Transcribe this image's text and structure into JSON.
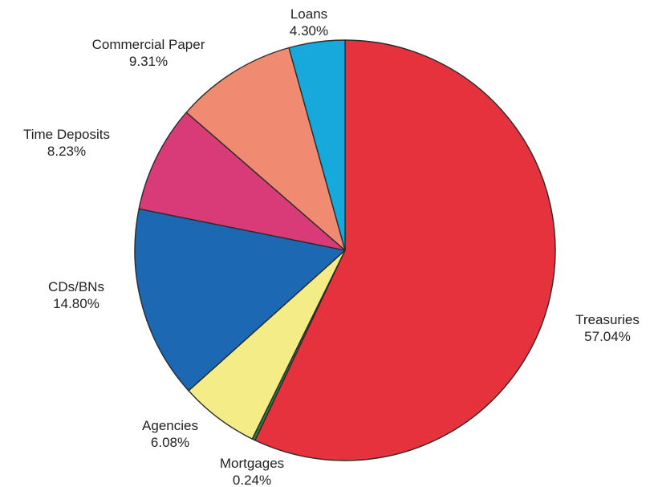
{
  "chart_data": {
    "type": "pie",
    "title": "",
    "start_angle_deg": 0,
    "direction": "clockwise",
    "slices": [
      {
        "label": "Treasuries",
        "value": 57.04,
        "display": "57.04%",
        "color": "#e5323d"
      },
      {
        "label": "Mortgages",
        "value": 0.24,
        "display": "0.24%",
        "color": "#2e7d3a"
      },
      {
        "label": "Agencies",
        "value": 6.08,
        "display": "6.08%",
        "color": "#f4ec86"
      },
      {
        "label": "CDs/BNs",
        "value": 14.8,
        "display": "14.80%",
        "color": "#1d68b3"
      },
      {
        "label": "Time Deposits",
        "value": 8.23,
        "display": "8.23%",
        "color": "#d93a78"
      },
      {
        "label": "Commercial Paper",
        "value": 9.31,
        "display": "9.31%",
        "color": "#f08b72"
      },
      {
        "label": "Loans",
        "value": 4.3,
        "display": "4.30%",
        "color": "#17a9dc"
      }
    ]
  }
}
